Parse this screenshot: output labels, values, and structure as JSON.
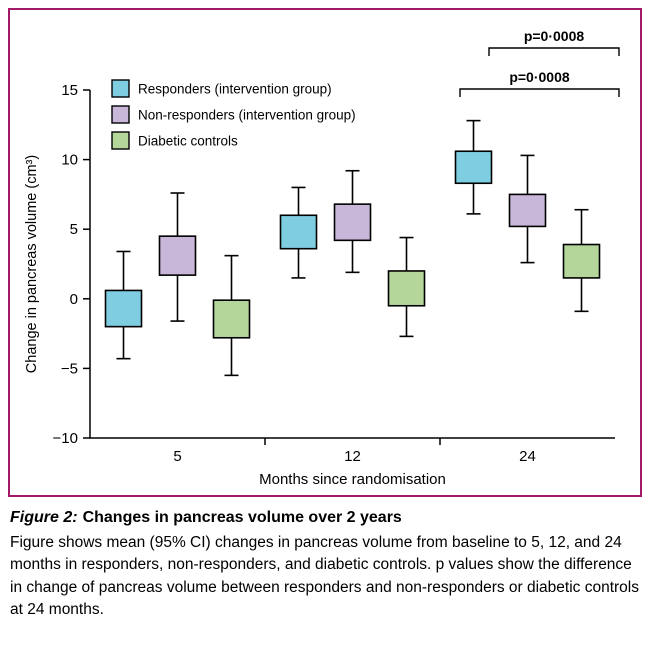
{
  "page": {
    "accent_color": "#A21968",
    "background": "#ffffff"
  },
  "caption": {
    "label": "Figure 2:",
    "title": "Changes in pancreas volume over 2 years",
    "body": "Figure shows mean (95% CI) changes in pancreas volume from baseline to 5, 12, and 24 months in responders, non-responders, and diabetic controls. p values show the difference in change of pancreas volume between responders and non-responders or diabetic controls at 24 months."
  },
  "chart_data": {
    "type": "box",
    "title": "",
    "xlabel": "Months since randomisation",
    "ylabel": "Change in pancreas volume (cm³)",
    "ylim": [
      -10,
      15
    ],
    "yticks": [
      15,
      10,
      5,
      0,
      -5,
      -10
    ],
    "categories": [
      "5",
      "12",
      "24"
    ],
    "grid": false,
    "legend_position": "upper-left",
    "series": [
      {
        "name": "Responders (intervention group)",
        "color": "#7FCDE0",
        "points": [
          {
            "month": 5,
            "mean": -0.7,
            "box_low": -2.0,
            "box_high": 0.6,
            "ci_low": -4.3,
            "ci_high": 3.4
          },
          {
            "month": 12,
            "mean": 4.8,
            "box_low": 3.6,
            "box_high": 6.0,
            "ci_low": 1.5,
            "ci_high": 8.0
          },
          {
            "month": 24,
            "mean": 9.4,
            "box_low": 8.3,
            "box_high": 10.6,
            "ci_low": 6.1,
            "ci_high": 12.8
          }
        ]
      },
      {
        "name": "Non-responders (intervention group)",
        "color": "#C9B7D9",
        "points": [
          {
            "month": 5,
            "mean": 3.1,
            "box_low": 1.7,
            "box_high": 4.5,
            "ci_low": -1.6,
            "ci_high": 7.6
          },
          {
            "month": 12,
            "mean": 5.5,
            "box_low": 4.2,
            "box_high": 6.8,
            "ci_low": 1.9,
            "ci_high": 9.2
          },
          {
            "month": 24,
            "mean": 6.3,
            "box_low": 5.2,
            "box_high": 7.5,
            "ci_low": 2.6,
            "ci_high": 10.3
          }
        ]
      },
      {
        "name": "Diabetic controls",
        "color": "#B5D69A",
        "points": [
          {
            "month": 5,
            "mean": -1.4,
            "box_low": -2.8,
            "box_high": -0.1,
            "ci_low": -5.5,
            "ci_high": 3.1
          },
          {
            "month": 12,
            "mean": 0.8,
            "box_low": -0.5,
            "box_high": 2.0,
            "ci_low": -2.7,
            "ci_high": 4.4
          },
          {
            "month": 24,
            "mean": 2.7,
            "box_low": 1.5,
            "box_high": 3.9,
            "ci_low": -0.9,
            "ci_high": 6.4
          }
        ]
      }
    ],
    "significance": [
      {
        "label": "p=0·0008"
      },
      {
        "label": "p=0·0008"
      }
    ]
  }
}
